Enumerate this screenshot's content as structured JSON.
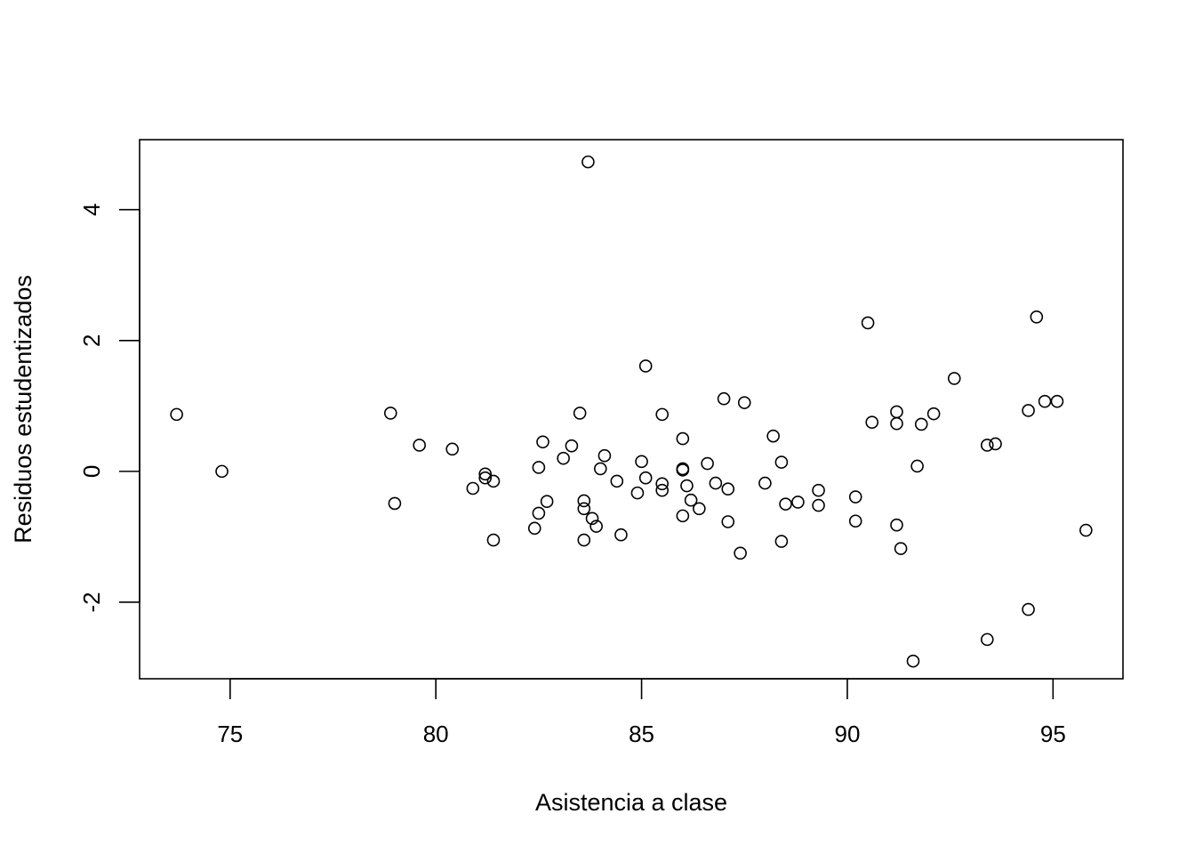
{
  "chart_data": {
    "type": "scatter",
    "title": "",
    "xlabel": "Asistencia a clase",
    "ylabel": "Residuos estudentizados",
    "xlim": [
      72.8,
      96.7
    ],
    "ylim": [
      -3.17,
      5.07
    ],
    "x_ticks": [
      75,
      80,
      85,
      90,
      95
    ],
    "y_ticks": [
      -2,
      0,
      2,
      4
    ],
    "grid": false,
    "marker": "open-circle",
    "points": [
      {
        "x": 73.7,
        "y": 0.87
      },
      {
        "x": 74.8,
        "y": 0.0
      },
      {
        "x": 78.9,
        "y": 0.89
      },
      {
        "x": 79.0,
        "y": -0.49
      },
      {
        "x": 79.6,
        "y": 0.4
      },
      {
        "x": 80.4,
        "y": 0.34
      },
      {
        "x": 80.9,
        "y": -0.26
      },
      {
        "x": 81.2,
        "y": -0.04
      },
      {
        "x": 81.2,
        "y": -0.1
      },
      {
        "x": 81.4,
        "y": -0.15
      },
      {
        "x": 81.4,
        "y": -1.05
      },
      {
        "x": 82.4,
        "y": -0.87
      },
      {
        "x": 82.5,
        "y": -0.64
      },
      {
        "x": 82.5,
        "y": 0.06
      },
      {
        "x": 82.6,
        "y": 0.45
      },
      {
        "x": 82.7,
        "y": -0.46
      },
      {
        "x": 83.1,
        "y": 0.2
      },
      {
        "x": 83.3,
        "y": 0.39
      },
      {
        "x": 83.5,
        "y": 0.89
      },
      {
        "x": 83.6,
        "y": -0.45
      },
      {
        "x": 83.6,
        "y": -0.57
      },
      {
        "x": 83.6,
        "y": -1.05
      },
      {
        "x": 83.7,
        "y": 4.73
      },
      {
        "x": 83.8,
        "y": -0.72
      },
      {
        "x": 83.9,
        "y": -0.84
      },
      {
        "x": 84.0,
        "y": 0.04
      },
      {
        "x": 84.1,
        "y": 0.24
      },
      {
        "x": 84.4,
        "y": -0.15
      },
      {
        "x": 84.5,
        "y": -0.97
      },
      {
        "x": 84.9,
        "y": -0.33
      },
      {
        "x": 85.0,
        "y": 0.15
      },
      {
        "x": 85.1,
        "y": -0.1
      },
      {
        "x": 85.1,
        "y": 1.61
      },
      {
        "x": 85.5,
        "y": -0.19
      },
      {
        "x": 85.5,
        "y": -0.29
      },
      {
        "x": 85.5,
        "y": 0.87
      },
      {
        "x": 86.0,
        "y": 0.5
      },
      {
        "x": 86.0,
        "y": 0.04
      },
      {
        "x": 86.0,
        "y": 0.02
      },
      {
        "x": 86.0,
        "y": -0.68
      },
      {
        "x": 86.1,
        "y": -0.22
      },
      {
        "x": 86.2,
        "y": -0.44
      },
      {
        "x": 86.4,
        "y": -0.57
      },
      {
        "x": 86.6,
        "y": 0.12
      },
      {
        "x": 86.8,
        "y": -0.18
      },
      {
        "x": 87.0,
        "y": 1.11
      },
      {
        "x": 87.1,
        "y": -0.27
      },
      {
        "x": 87.1,
        "y": -0.77
      },
      {
        "x": 87.4,
        "y": -1.25
      },
      {
        "x": 87.5,
        "y": 1.05
      },
      {
        "x": 88.0,
        "y": -0.18
      },
      {
        "x": 88.2,
        "y": 0.54
      },
      {
        "x": 88.4,
        "y": 0.14
      },
      {
        "x": 88.4,
        "y": -1.07
      },
      {
        "x": 88.5,
        "y": -0.5
      },
      {
        "x": 88.8,
        "y": -0.47
      },
      {
        "x": 89.3,
        "y": -0.29
      },
      {
        "x": 89.3,
        "y": -0.52
      },
      {
        "x": 90.2,
        "y": -0.39
      },
      {
        "x": 90.2,
        "y": -0.76
      },
      {
        "x": 90.5,
        "y": 2.27
      },
      {
        "x": 90.6,
        "y": 0.75
      },
      {
        "x": 91.2,
        "y": 0.91
      },
      {
        "x": 91.2,
        "y": 0.73
      },
      {
        "x": 91.2,
        "y": -0.82
      },
      {
        "x": 91.3,
        "y": -1.18
      },
      {
        "x": 91.6,
        "y": -2.9
      },
      {
        "x": 91.7,
        "y": 0.08
      },
      {
        "x": 91.8,
        "y": 0.72
      },
      {
        "x": 92.1,
        "y": 0.88
      },
      {
        "x": 92.6,
        "y": 1.42
      },
      {
        "x": 93.4,
        "y": 0.4
      },
      {
        "x": 93.4,
        "y": -2.57
      },
      {
        "x": 93.6,
        "y": 0.42
      },
      {
        "x": 94.4,
        "y": 0.93
      },
      {
        "x": 94.4,
        "y": -2.11
      },
      {
        "x": 94.6,
        "y": 2.36
      },
      {
        "x": 94.8,
        "y": 1.07
      },
      {
        "x": 95.1,
        "y": 1.07
      },
      {
        "x": 95.8,
        "y": -0.9
      }
    ]
  }
}
